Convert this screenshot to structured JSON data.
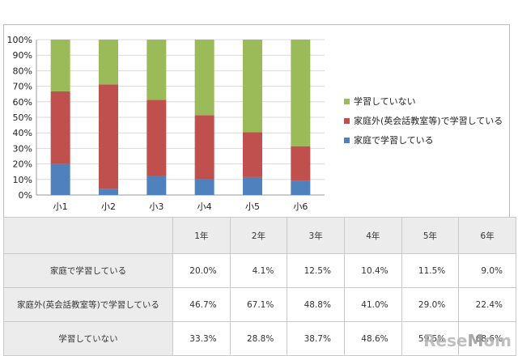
{
  "chart_data": {
    "type": "bar",
    "stacked": true,
    "percent": true,
    "categories": [
      "小1",
      "小2",
      "小3",
      "小4",
      "小5",
      "小6"
    ],
    "series": [
      {
        "name": "家庭で学習している",
        "color": "#4f81bd",
        "values": [
          20.0,
          4.1,
          12.5,
          10.4,
          11.5,
          9.0
        ]
      },
      {
        "name": "家庭外(英会話教室等)で学習している",
        "color": "#c0504d",
        "values": [
          46.7,
          67.1,
          48.8,
          41.0,
          29.0,
          22.4
        ]
      },
      {
        "name": "学習していない",
        "color": "#9bbb59",
        "values": [
          33.3,
          28.8,
          38.7,
          48.6,
          59.5,
          68.6
        ]
      }
    ],
    "yticks": [
      "0%",
      "10%",
      "20%",
      "30%",
      "40%",
      "50%",
      "60%",
      "70%",
      "80%",
      "90%",
      "100%"
    ],
    "ylim": [
      0,
      100
    ],
    "grid": true,
    "legend_position": "right",
    "legend_order": [
      2,
      1,
      0
    ]
  },
  "table": {
    "columns": [
      "1年",
      "2年",
      "3年",
      "4年",
      "5年",
      "6年"
    ],
    "rows": [
      {
        "label": "家庭で学習している",
        "values": [
          "20.0%",
          "4.1%",
          "12.5%",
          "10.4%",
          "11.5%",
          "9.0%"
        ]
      },
      {
        "label": "家庭外(英会話教室等)で学習している",
        "values": [
          "46.7%",
          "67.1%",
          "48.8%",
          "41.0%",
          "29.0%",
          "22.4%"
        ]
      },
      {
        "label": "学習していない",
        "values": [
          "33.3%",
          "28.8%",
          "38.7%",
          "48.6%",
          "59.5%",
          "68.6%"
        ]
      }
    ]
  },
  "watermark": {
    "main": "ReseMom",
    "accent_char": "M"
  }
}
